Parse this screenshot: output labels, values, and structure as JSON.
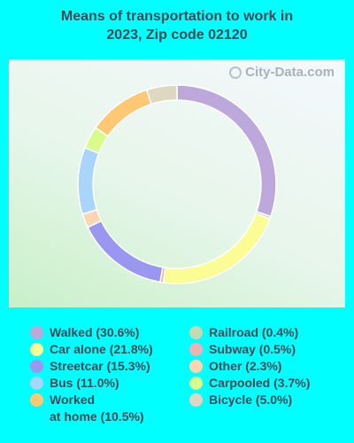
{
  "chart_data": {
    "type": "pie",
    "title": "Means of transportation to work in 2023, Zip code 02120",
    "watermark": "City-Data.com",
    "slices": [
      {
        "label": "Walked",
        "value": 30.6,
        "display": "Walked (30.6%)",
        "color": "#bca8db"
      },
      {
        "label": "Railroad",
        "value": 0.4,
        "display": "Railroad (0.4%)",
        "color": "#c3dbb3"
      },
      {
        "label": "Car alone",
        "value": 21.8,
        "display": "Car alone (21.8%)",
        "color": "#fcfc95"
      },
      {
        "label": "Subway",
        "value": 0.5,
        "display": "Subway (0.5%)",
        "color": "#f0b2b3"
      },
      {
        "label": "Streetcar",
        "value": 15.3,
        "display": "Streetcar (15.3%)",
        "color": "#9997ef"
      },
      {
        "label": "Other",
        "value": 2.3,
        "display": "Other (2.3%)",
        "color": "#fcd6b1"
      },
      {
        "label": "Bus",
        "value": 11.0,
        "display": "Bus (11.0%)",
        "color": "#a9d4fb"
      },
      {
        "label": "Carpooled",
        "value": 3.7,
        "display": "Carpooled (3.7%)",
        "color": "#d8fb8c"
      },
      {
        "label": "Worked at home",
        "value": 10.5,
        "display_line1": "Worked",
        "display_line2": "at home (10.5%)",
        "color": "#fdc874"
      },
      {
        "label": "Bicycle",
        "value": 5.0,
        "display": "Bicycle (5.0%)",
        "color": "#ddd8bf"
      }
    ]
  }
}
